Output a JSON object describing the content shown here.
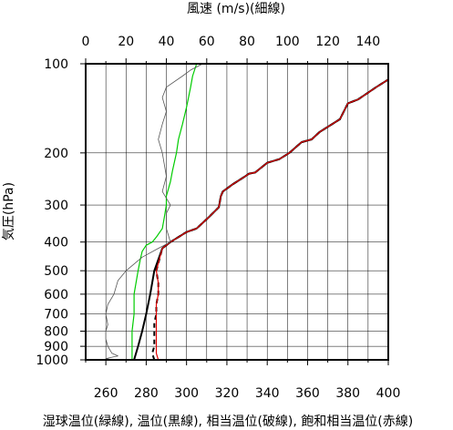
{
  "chart_data": {
    "type": "line",
    "top_axis_label": "風速 (m/s)(細線)",
    "bottom_axis_label": "湿球温位(緑線), 温位(黒線), 相当温位(破線), 飽和相当温位(赤線)",
    "ylabel": "気圧(hPa)",
    "x_bottom": {
      "min": 250,
      "max": 400,
      "ticks": [
        260,
        280,
        300,
        320,
        340,
        360,
        380,
        400
      ]
    },
    "x_top": {
      "min": 0,
      "max": 150,
      "ticks": [
        0,
        20,
        40,
        60,
        80,
        100,
        120,
        140
      ]
    },
    "y": {
      "scale": "log",
      "min": 1000,
      "max": 100,
      "inverted": true,
      "ticks": [
        100,
        200,
        300,
        400,
        500,
        600,
        700,
        800,
        900,
        1000
      ]
    },
    "grid": true,
    "series": [
      {
        "axis": "bottom",
        "color": "#000000",
        "width": 2,
        "dash": "",
        "points": [
          [
            274,
            1000
          ],
          [
            276,
            900
          ],
          [
            278,
            800
          ],
          [
            280,
            700
          ],
          [
            282,
            600
          ],
          [
            284,
            500
          ],
          [
            288,
            420
          ],
          [
            292,
            400
          ],
          [
            300,
            370
          ],
          [
            305,
            360
          ],
          [
            311,
            330
          ],
          [
            316,
            305
          ],
          [
            317,
            280
          ],
          [
            318,
            270
          ],
          [
            323,
            255
          ],
          [
            329,
            240
          ],
          [
            331,
            235
          ],
          [
            334,
            233
          ],
          [
            340,
            216
          ],
          [
            346,
            210
          ],
          [
            351,
            200
          ],
          [
            357,
            184
          ],
          [
            362,
            180
          ],
          [
            366,
            170
          ],
          [
            376,
            154
          ],
          [
            380,
            136
          ],
          [
            385,
            132
          ],
          [
            394,
            120
          ],
          [
            400,
            113
          ],
          [
            400,
            110
          ]
        ]
      },
      {
        "axis": "bottom",
        "color": "#000000",
        "width": 2,
        "dash": "5,4",
        "points": [
          [
            284,
            1000
          ],
          [
            283,
            950
          ],
          [
            284,
            900
          ],
          [
            284,
            850
          ],
          [
            284,
            800
          ],
          [
            284,
            750
          ],
          [
            285,
            700
          ],
          [
            285,
            650
          ],
          [
            286,
            600
          ],
          [
            286,
            550
          ],
          [
            285,
            500
          ],
          [
            288,
            420
          ],
          [
            292,
            400
          ],
          [
            300,
            370
          ],
          [
            305,
            360
          ],
          [
            311,
            330
          ],
          [
            316,
            305
          ],
          [
            317,
            280
          ],
          [
            318,
            270
          ],
          [
            323,
            255
          ],
          [
            329,
            240
          ],
          [
            331,
            235
          ],
          [
            334,
            233
          ],
          [
            340,
            216
          ],
          [
            346,
            210
          ],
          [
            351,
            200
          ],
          [
            357,
            184
          ],
          [
            362,
            180
          ],
          [
            366,
            170
          ],
          [
            376,
            154
          ],
          [
            380,
            136
          ],
          [
            385,
            132
          ],
          [
            394,
            120
          ],
          [
            400,
            113
          ],
          [
            400,
            110
          ]
        ]
      },
      {
        "axis": "bottom",
        "color": "#e00000",
        "width": 1.2,
        "dash": "",
        "points": [
          [
            286,
            1000
          ],
          [
            285,
            950
          ],
          [
            285,
            900
          ],
          [
            285,
            850
          ],
          [
            285,
            800
          ],
          [
            285,
            750
          ],
          [
            285,
            700
          ],
          [
            285,
            650
          ],
          [
            286,
            600
          ],
          [
            286,
            550
          ],
          [
            285,
            500
          ],
          [
            288,
            420
          ],
          [
            292,
            400
          ],
          [
            300,
            370
          ],
          [
            305,
            360
          ],
          [
            311,
            330
          ],
          [
            316,
            305
          ],
          [
            317,
            280
          ],
          [
            318,
            270
          ],
          [
            323,
            255
          ],
          [
            329,
            240
          ],
          [
            331,
            235
          ],
          [
            334,
            233
          ],
          [
            340,
            216
          ],
          [
            346,
            210
          ],
          [
            351,
            200
          ],
          [
            357,
            184
          ],
          [
            362,
            180
          ],
          [
            366,
            170
          ],
          [
            376,
            154
          ],
          [
            380,
            136
          ],
          [
            385,
            132
          ],
          [
            394,
            120
          ],
          [
            400,
            113
          ],
          [
            400,
            110
          ]
        ]
      },
      {
        "axis": "bottom",
        "color": "#00cc00",
        "width": 1.2,
        "dash": "",
        "points": [
          [
            273,
            1000
          ],
          [
            273,
            900
          ],
          [
            273,
            800
          ],
          [
            274,
            700
          ],
          [
            274,
            600
          ],
          [
            276,
            500
          ],
          [
            277,
            460
          ],
          [
            278,
            430
          ],
          [
            280,
            410
          ],
          [
            283,
            400
          ],
          [
            285,
            385
          ],
          [
            288,
            360
          ],
          [
            289,
            330
          ],
          [
            290,
            300
          ],
          [
            290,
            280
          ],
          [
            291,
            265
          ],
          [
            292,
            250
          ],
          [
            293,
            230
          ],
          [
            295,
            200
          ],
          [
            296,
            180
          ],
          [
            298,
            160
          ],
          [
            300,
            140
          ],
          [
            302,
            120
          ],
          [
            303,
            110
          ],
          [
            305,
            100
          ]
        ]
      },
      {
        "axis": "top",
        "color": "#555555",
        "width": 0.8,
        "dash": "",
        "points": [
          [
            14,
            1000
          ],
          [
            10,
            990
          ],
          [
            16,
            970
          ],
          [
            13,
            950
          ],
          [
            11,
            900
          ],
          [
            10,
            850
          ],
          [
            10,
            800
          ],
          [
            11,
            760
          ],
          [
            10,
            700
          ],
          [
            11,
            650
          ],
          [
            14,
            600
          ],
          [
            16,
            540
          ],
          [
            20,
            500
          ],
          [
            28,
            450
          ],
          [
            36,
            420
          ],
          [
            42,
            400
          ],
          [
            40,
            360
          ],
          [
            40,
            320
          ],
          [
            42,
            300
          ],
          [
            38,
            270
          ],
          [
            40,
            240
          ],
          [
            38,
            200
          ],
          [
            36,
            180
          ],
          [
            38,
            160
          ],
          [
            40,
            145
          ],
          [
            38,
            130
          ],
          [
            40,
            120
          ],
          [
            48,
            110
          ],
          [
            52,
            105
          ],
          [
            58,
            100
          ]
        ]
      }
    ]
  }
}
